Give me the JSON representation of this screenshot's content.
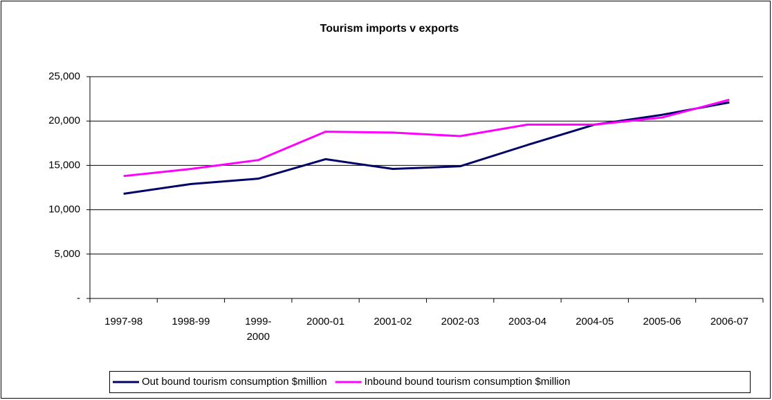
{
  "chart_data": {
    "type": "line",
    "title": "Tourism imports v exports",
    "categories": [
      "1997-98",
      "1998-99",
      "1999-2000",
      "2000-01",
      "2001-02",
      "2002-03",
      "2003-04",
      "2004-05",
      "2005-06",
      "2006-07"
    ],
    "series": [
      {
        "name": "Out bound tourism consumption $million",
        "color": "#000066",
        "values": [
          11800,
          12900,
          13500,
          15700,
          14600,
          14900,
          17300,
          19600,
          20700,
          22100
        ]
      },
      {
        "name": "Inbound bound tourism consumption $million",
        "color": "#ff00ff",
        "values": [
          13800,
          14600,
          15600,
          18800,
          18700,
          18300,
          19600,
          19600,
          20400,
          22400
        ]
      }
    ],
    "ylim": [
      0,
      25000
    ],
    "yticks": [
      {
        "value": 0,
        "label": "-"
      },
      {
        "value": 5000,
        "label": "5,000"
      },
      {
        "value": 10000,
        "label": "10,000"
      },
      {
        "value": 15000,
        "label": "15,000"
      },
      {
        "value": 20000,
        "label": "20,000"
      },
      {
        "value": 25000,
        "label": "25,000"
      }
    ],
    "grid": true,
    "legend": "bottom"
  }
}
